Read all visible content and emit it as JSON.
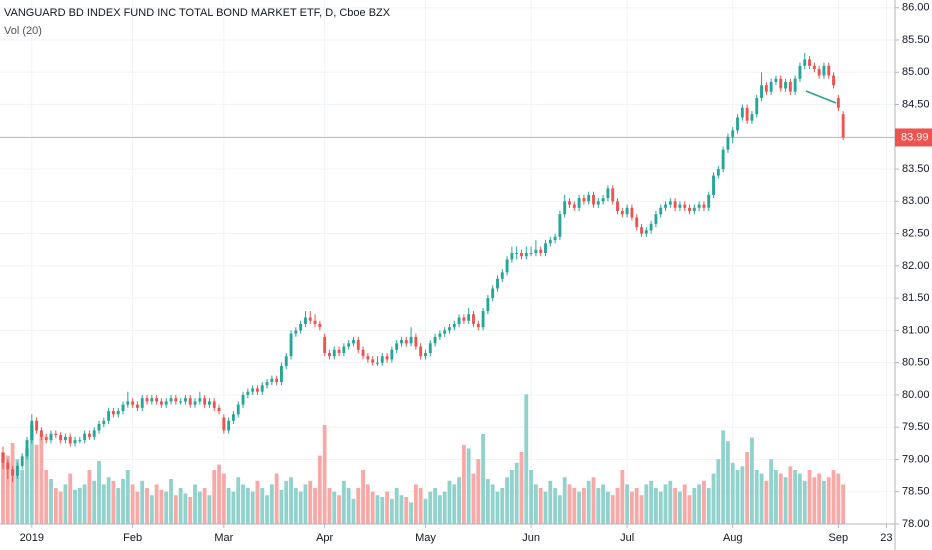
{
  "chart_data": {
    "type": "candlestick",
    "title": "VANGUARD BD INDEX FUND INC TOTAL BOND MARKET ETF, D, Cboe BZX",
    "legend": "Vol (20)",
    "up_color": "#26a69a",
    "down_color": "#ef5350",
    "volume_up_color": "#92d2cc",
    "volume_down_color": "#f7a9a7",
    "grid": true,
    "ylim": [
      78,
      86.12
    ],
    "yticks": [
      {
        "value": 78,
        "label": "78.00"
      },
      {
        "value": 78.5,
        "label": "78.50"
      },
      {
        "value": 79,
        "label": "79.00"
      },
      {
        "value": 79.5,
        "label": "79.50"
      },
      {
        "value": 80,
        "label": "80.00"
      },
      {
        "value": 80.5,
        "label": "80.50"
      },
      {
        "value": 81,
        "label": "81.00"
      },
      {
        "value": 81.5,
        "label": "81.50"
      },
      {
        "value": 82,
        "label": "82.00"
      },
      {
        "value": 82.5,
        "label": "82.50"
      },
      {
        "value": 83,
        "label": "83.00"
      },
      {
        "value": 83.5,
        "label": "83.50"
      },
      {
        "value": 84,
        "label": "84.00"
      },
      {
        "value": 84.5,
        "label": "84.50"
      },
      {
        "value": 85,
        "label": "85.00"
      },
      {
        "value": 85.5,
        "label": "85.50"
      },
      {
        "value": 86,
        "label": "86.00"
      }
    ],
    "y2lim": [
      0,
      100
    ],
    "xlim": [
      -0.625,
      185.8
    ],
    "xticks": [
      {
        "value": 6,
        "label": "2019"
      },
      {
        "value": 27,
        "label": "Feb"
      },
      {
        "value": 46,
        "label": "Mar"
      },
      {
        "value": 67,
        "label": "Apr"
      },
      {
        "value": 88,
        "label": "May"
      },
      {
        "value": 110,
        "label": "Jun"
      },
      {
        "value": 130,
        "label": "Jul"
      },
      {
        "value": 152,
        "label": "Aug"
      },
      {
        "value": 174,
        "label": "Sep"
      },
      {
        "value": 184,
        "label": "23"
      }
    ],
    "last_price_label": "83.99",
    "ohlc": [
      [
        79.1,
        79.2,
        78.85,
        78.95
      ],
      [
        78.95,
        79.0,
        78.7,
        78.85
      ],
      [
        78.85,
        78.9,
        78.65,
        78.75
      ],
      [
        78.75,
        78.95,
        78.7,
        78.9
      ],
      [
        78.9,
        79.1,
        78.85,
        79.05
      ],
      [
        79.05,
        79.35,
        79.0,
        79.3
      ],
      [
        79.3,
        79.7,
        79.25,
        79.6
      ],
      [
        79.6,
        79.65,
        79.4,
        79.45
      ],
      [
        79.45,
        79.5,
        79.3,
        79.35
      ],
      [
        79.35,
        79.4,
        79.25,
        79.3
      ],
      [
        79.3,
        79.45,
        79.25,
        79.4
      ],
      [
        79.4,
        79.45,
        79.33,
        79.38
      ],
      [
        79.38,
        79.42,
        79.25,
        79.3
      ],
      [
        79.3,
        79.4,
        79.25,
        79.35
      ],
      [
        79.35,
        79.4,
        79.2,
        79.25
      ],
      [
        79.25,
        79.35,
        79.2,
        79.3
      ],
      [
        79.3,
        79.35,
        79.25,
        79.3
      ],
      [
        79.3,
        79.45,
        79.25,
        79.4
      ],
      [
        79.4,
        79.45,
        79.3,
        79.35
      ],
      [
        79.35,
        79.5,
        79.3,
        79.45
      ],
      [
        79.45,
        79.6,
        79.4,
        79.55
      ],
      [
        79.55,
        79.65,
        79.5,
        79.6
      ],
      [
        79.6,
        79.8,
        79.55,
        79.75
      ],
      [
        79.75,
        79.8,
        79.65,
        79.7
      ],
      [
        79.7,
        79.8,
        79.65,
        79.75
      ],
      [
        79.75,
        79.9,
        79.7,
        79.85
      ],
      [
        79.85,
        80.05,
        79.8,
        79.9
      ],
      [
        79.9,
        79.95,
        79.8,
        79.85
      ],
      [
        79.85,
        79.9,
        79.75,
        79.8
      ],
      [
        79.8,
        80.0,
        79.75,
        79.95
      ],
      [
        79.95,
        80.0,
        79.85,
        79.9
      ],
      [
        79.9,
        80.0,
        79.85,
        79.95
      ],
      [
        79.95,
        80.0,
        79.85,
        79.9
      ],
      [
        79.9,
        79.95,
        79.8,
        79.85
      ],
      [
        79.85,
        79.95,
        79.8,
        79.9
      ],
      [
        79.9,
        80.0,
        79.85,
        79.95
      ],
      [
        79.95,
        80.0,
        79.85,
        79.9
      ],
      [
        79.9,
        79.95,
        79.85,
        79.9
      ],
      [
        79.9,
        80.0,
        79.85,
        79.95
      ],
      [
        79.95,
        80.0,
        79.8,
        79.85
      ],
      [
        79.85,
        79.95,
        79.8,
        79.9
      ],
      [
        79.9,
        80.05,
        79.85,
        79.95
      ],
      [
        79.95,
        80.0,
        79.8,
        79.85
      ],
      [
        79.85,
        79.95,
        79.8,
        79.9
      ],
      [
        79.9,
        79.95,
        79.75,
        79.8
      ],
      [
        79.8,
        79.85,
        79.7,
        79.75
      ],
      [
        79.65,
        79.7,
        79.4,
        79.45
      ],
      [
        79.45,
        79.65,
        79.4,
        79.6
      ],
      [
        79.6,
        79.75,
        79.55,
        79.7
      ],
      [
        79.7,
        79.9,
        79.65,
        79.85
      ],
      [
        79.85,
        80.05,
        79.8,
        80.0
      ],
      [
        80.0,
        80.1,
        79.95,
        80.05
      ],
      [
        80.05,
        80.15,
        80.0,
        80.1
      ],
      [
        80.1,
        80.15,
        80.0,
        80.05
      ],
      [
        80.05,
        80.2,
        80.0,
        80.15
      ],
      [
        80.15,
        80.25,
        80.1,
        80.2
      ],
      [
        80.2,
        80.3,
        80.15,
        80.25
      ],
      [
        80.25,
        80.3,
        80.15,
        80.2
      ],
      [
        80.2,
        80.5,
        80.15,
        80.45
      ],
      [
        80.45,
        80.65,
        80.4,
        80.6
      ],
      [
        80.6,
        81.0,
        80.55,
        80.95
      ],
      [
        80.95,
        81.05,
        80.9,
        81.0
      ],
      [
        81.0,
        81.15,
        80.95,
        81.1
      ],
      [
        81.1,
        81.3,
        81.05,
        81.2
      ],
      [
        81.2,
        81.3,
        81.1,
        81.15
      ],
      [
        81.15,
        81.25,
        81.05,
        81.1
      ],
      [
        81.1,
        81.15,
        81.0,
        81.05
      ],
      [
        80.9,
        80.95,
        80.6,
        80.65
      ],
      [
        80.65,
        80.7,
        80.55,
        80.6
      ],
      [
        80.6,
        80.75,
        80.55,
        80.7
      ],
      [
        80.7,
        80.75,
        80.6,
        80.65
      ],
      [
        80.65,
        80.8,
        80.6,
        80.75
      ],
      [
        80.75,
        80.85,
        80.7,
        80.8
      ],
      [
        80.8,
        80.9,
        80.75,
        80.85
      ],
      [
        80.85,
        80.9,
        80.65,
        80.7
      ],
      [
        80.7,
        80.75,
        80.55,
        80.6
      ],
      [
        80.6,
        80.65,
        80.5,
        80.55
      ],
      [
        80.55,
        80.6,
        80.45,
        80.5
      ],
      [
        80.5,
        80.6,
        80.45,
        80.5
      ],
      [
        80.5,
        80.65,
        80.45,
        80.6
      ],
      [
        80.6,
        80.65,
        80.5,
        80.55
      ],
      [
        80.55,
        80.75,
        80.5,
        80.7
      ],
      [
        80.7,
        80.85,
        80.65,
        80.8
      ],
      [
        80.8,
        80.9,
        80.75,
        80.85
      ],
      [
        80.85,
        80.9,
        80.75,
        80.8
      ],
      [
        80.8,
        81.05,
        80.75,
        80.9
      ],
      [
        80.9,
        80.95,
        80.7,
        80.75
      ],
      [
        80.75,
        80.8,
        80.55,
        80.6
      ],
      [
        80.6,
        80.7,
        80.55,
        80.65
      ],
      [
        80.65,
        80.85,
        80.6,
        80.8
      ],
      [
        80.8,
        80.95,
        80.75,
        80.9
      ],
      [
        80.9,
        81.0,
        80.85,
        80.95
      ],
      [
        80.95,
        81.05,
        80.9,
        81.0
      ],
      [
        81.0,
        81.1,
        80.95,
        81.05
      ],
      [
        81.05,
        81.15,
        81.0,
        81.1
      ],
      [
        81.1,
        81.25,
        81.05,
        81.2
      ],
      [
        81.2,
        81.25,
        81.1,
        81.15
      ],
      [
        81.15,
        81.35,
        81.1,
        81.25
      ],
      [
        81.25,
        81.3,
        81.05,
        81.1
      ],
      [
        81.1,
        81.15,
        81.0,
        81.05
      ],
      [
        81.05,
        81.35,
        81.0,
        81.3
      ],
      [
        81.3,
        81.55,
        81.25,
        81.5
      ],
      [
        81.5,
        81.7,
        81.45,
        81.65
      ],
      [
        81.65,
        81.85,
        81.6,
        81.8
      ],
      [
        81.8,
        81.95,
        81.75,
        81.9
      ],
      [
        81.9,
        82.15,
        81.85,
        82.1
      ],
      [
        82.1,
        82.3,
        82.05,
        82.2
      ],
      [
        82.2,
        82.3,
        82.1,
        82.2
      ],
      [
        82.2,
        82.25,
        82.1,
        82.15
      ],
      [
        82.15,
        82.3,
        82.1,
        82.2
      ],
      [
        82.2,
        82.3,
        82.15,
        82.2
      ],
      [
        82.2,
        82.4,
        82.15,
        82.25
      ],
      [
        82.25,
        82.3,
        82.15,
        82.2
      ],
      [
        82.2,
        82.4,
        82.15,
        82.35
      ],
      [
        82.35,
        82.45,
        82.3,
        82.4
      ],
      [
        82.4,
        82.5,
        82.35,
        82.45
      ],
      [
        82.45,
        82.85,
        82.4,
        82.8
      ],
      [
        82.8,
        83.1,
        82.75,
        83.0
      ],
      [
        83.0,
        83.05,
        82.9,
        82.95
      ],
      [
        82.95,
        83.0,
        82.85,
        82.9
      ],
      [
        82.9,
        83.1,
        82.85,
        83.05
      ],
      [
        83.05,
        83.1,
        82.95,
        83.0
      ],
      [
        83.0,
        83.15,
        82.95,
        83.1
      ],
      [
        83.1,
        83.15,
        82.9,
        82.95
      ],
      [
        82.95,
        83.05,
        82.9,
        83.0
      ],
      [
        83.0,
        83.1,
        82.95,
        83.05
      ],
      [
        83.05,
        83.25,
        83.0,
        83.2
      ],
      [
        83.2,
        83.25,
        82.95,
        83.0
      ],
      [
        83.0,
        83.05,
        82.8,
        82.85
      ],
      [
        82.85,
        82.9,
        82.75,
        82.8
      ],
      [
        82.8,
        82.95,
        82.75,
        82.9
      ],
      [
        82.9,
        82.95,
        82.7,
        82.75
      ],
      [
        82.75,
        82.8,
        82.55,
        82.6
      ],
      [
        82.6,
        82.65,
        82.45,
        82.5
      ],
      [
        82.5,
        82.6,
        82.45,
        82.55
      ],
      [
        82.55,
        82.7,
        82.5,
        82.65
      ],
      [
        82.65,
        82.85,
        82.6,
        82.8
      ],
      [
        82.8,
        82.95,
        82.75,
        82.9
      ],
      [
        82.9,
        83.0,
        82.85,
        82.95
      ],
      [
        82.95,
        83.05,
        82.9,
        83.0
      ],
      [
        83.0,
        83.05,
        82.85,
        82.9
      ],
      [
        82.9,
        83.0,
        82.85,
        82.95
      ],
      [
        82.95,
        83.0,
        82.85,
        82.9
      ],
      [
        82.9,
        82.95,
        82.8,
        82.85
      ],
      [
        82.85,
        82.95,
        82.8,
        82.9
      ],
      [
        82.9,
        83.0,
        82.85,
        82.95
      ],
      [
        82.95,
        83.0,
        82.85,
        82.9
      ],
      [
        82.9,
        83.15,
        82.85,
        83.1
      ],
      [
        83.1,
        83.45,
        83.05,
        83.4
      ],
      [
        83.4,
        83.55,
        83.35,
        83.5
      ],
      [
        83.5,
        83.85,
        83.45,
        83.8
      ],
      [
        83.8,
        84.05,
        83.75,
        84.0
      ],
      [
        84.0,
        84.15,
        83.9,
        84.1
      ],
      [
        84.1,
        84.35,
        84.05,
        84.3
      ],
      [
        84.3,
        84.5,
        84.25,
        84.45
      ],
      [
        84.45,
        84.5,
        84.2,
        84.25
      ],
      [
        84.25,
        84.4,
        84.2,
        84.35
      ],
      [
        84.35,
        84.65,
        84.3,
        84.6
      ],
      [
        84.6,
        85.0,
        84.55,
        84.8
      ],
      [
        84.8,
        84.85,
        84.65,
        84.7
      ],
      [
        84.7,
        84.9,
        84.65,
        84.85
      ],
      [
        84.85,
        84.95,
        84.8,
        84.9
      ],
      [
        84.9,
        84.95,
        84.7,
        84.75
      ],
      [
        84.75,
        84.9,
        84.7,
        84.85
      ],
      [
        84.85,
        84.9,
        84.65,
        84.7
      ],
      [
        84.7,
        84.95,
        84.65,
        84.9
      ],
      [
        84.9,
        85.15,
        84.85,
        85.1
      ],
      [
        85.1,
        85.3,
        85.05,
        85.2
      ],
      [
        85.2,
        85.25,
        85.05,
        85.1
      ],
      [
        85.1,
        85.15,
        85.0,
        85.05
      ],
      [
        85.05,
        85.1,
        84.9,
        84.95
      ],
      [
        84.95,
        85.15,
        84.9,
        85.1
      ],
      [
        85.1,
        85.15,
        84.9,
        84.95
      ],
      [
        84.95,
        85.0,
        84.75,
        84.8
      ],
      [
        84.6,
        84.65,
        84.4,
        84.45
      ],
      [
        84.35,
        84.4,
        83.95,
        83.99
      ]
    ],
    "volume": [
      40,
      38,
      45,
      36,
      30,
      42,
      55,
      44,
      50,
      30,
      25,
      20,
      18,
      22,
      28,
      19,
      20,
      22,
      30,
      24,
      35,
      22,
      26,
      24,
      20,
      25,
      30,
      22,
      18,
      24,
      20,
      16,
      22,
      19,
      18,
      25,
      16,
      20,
      17,
      15,
      22,
      18,
      20,
      16,
      30,
      33,
      28,
      20,
      18,
      26,
      22,
      20,
      18,
      24,
      20,
      16,
      22,
      28,
      19,
      24,
      26,
      20,
      18,
      22,
      24,
      20,
      38,
      55,
      20,
      18,
      16,
      24,
      20,
      14,
      20,
      30,
      22,
      18,
      16,
      15,
      18,
      14,
      20,
      16,
      15,
      12,
      22,
      20,
      14,
      18,
      20,
      16,
      18,
      24,
      22,
      26,
      44,
      42,
      28,
      36,
      50,
      25,
      22,
      18,
      20,
      26,
      30,
      34,
      40,
      72,
      30,
      22,
      20,
      18,
      24,
      20,
      16,
      26,
      22,
      20,
      18,
      20,
      24,
      26,
      20,
      22,
      18,
      16,
      20,
      30,
      22,
      18,
      20,
      16,
      22,
      24,
      20,
      18,
      22,
      24,
      20,
      18,
      22,
      16,
      20,
      22,
      24,
      20,
      28,
      36,
      52,
      46,
      34,
      30,
      32,
      40,
      48,
      30,
      28,
      24,
      36,
      30,
      28,
      26,
      32,
      30,
      28,
      24,
      30,
      26,
      28,
      24,
      26,
      30,
      28,
      22
    ]
  }
}
